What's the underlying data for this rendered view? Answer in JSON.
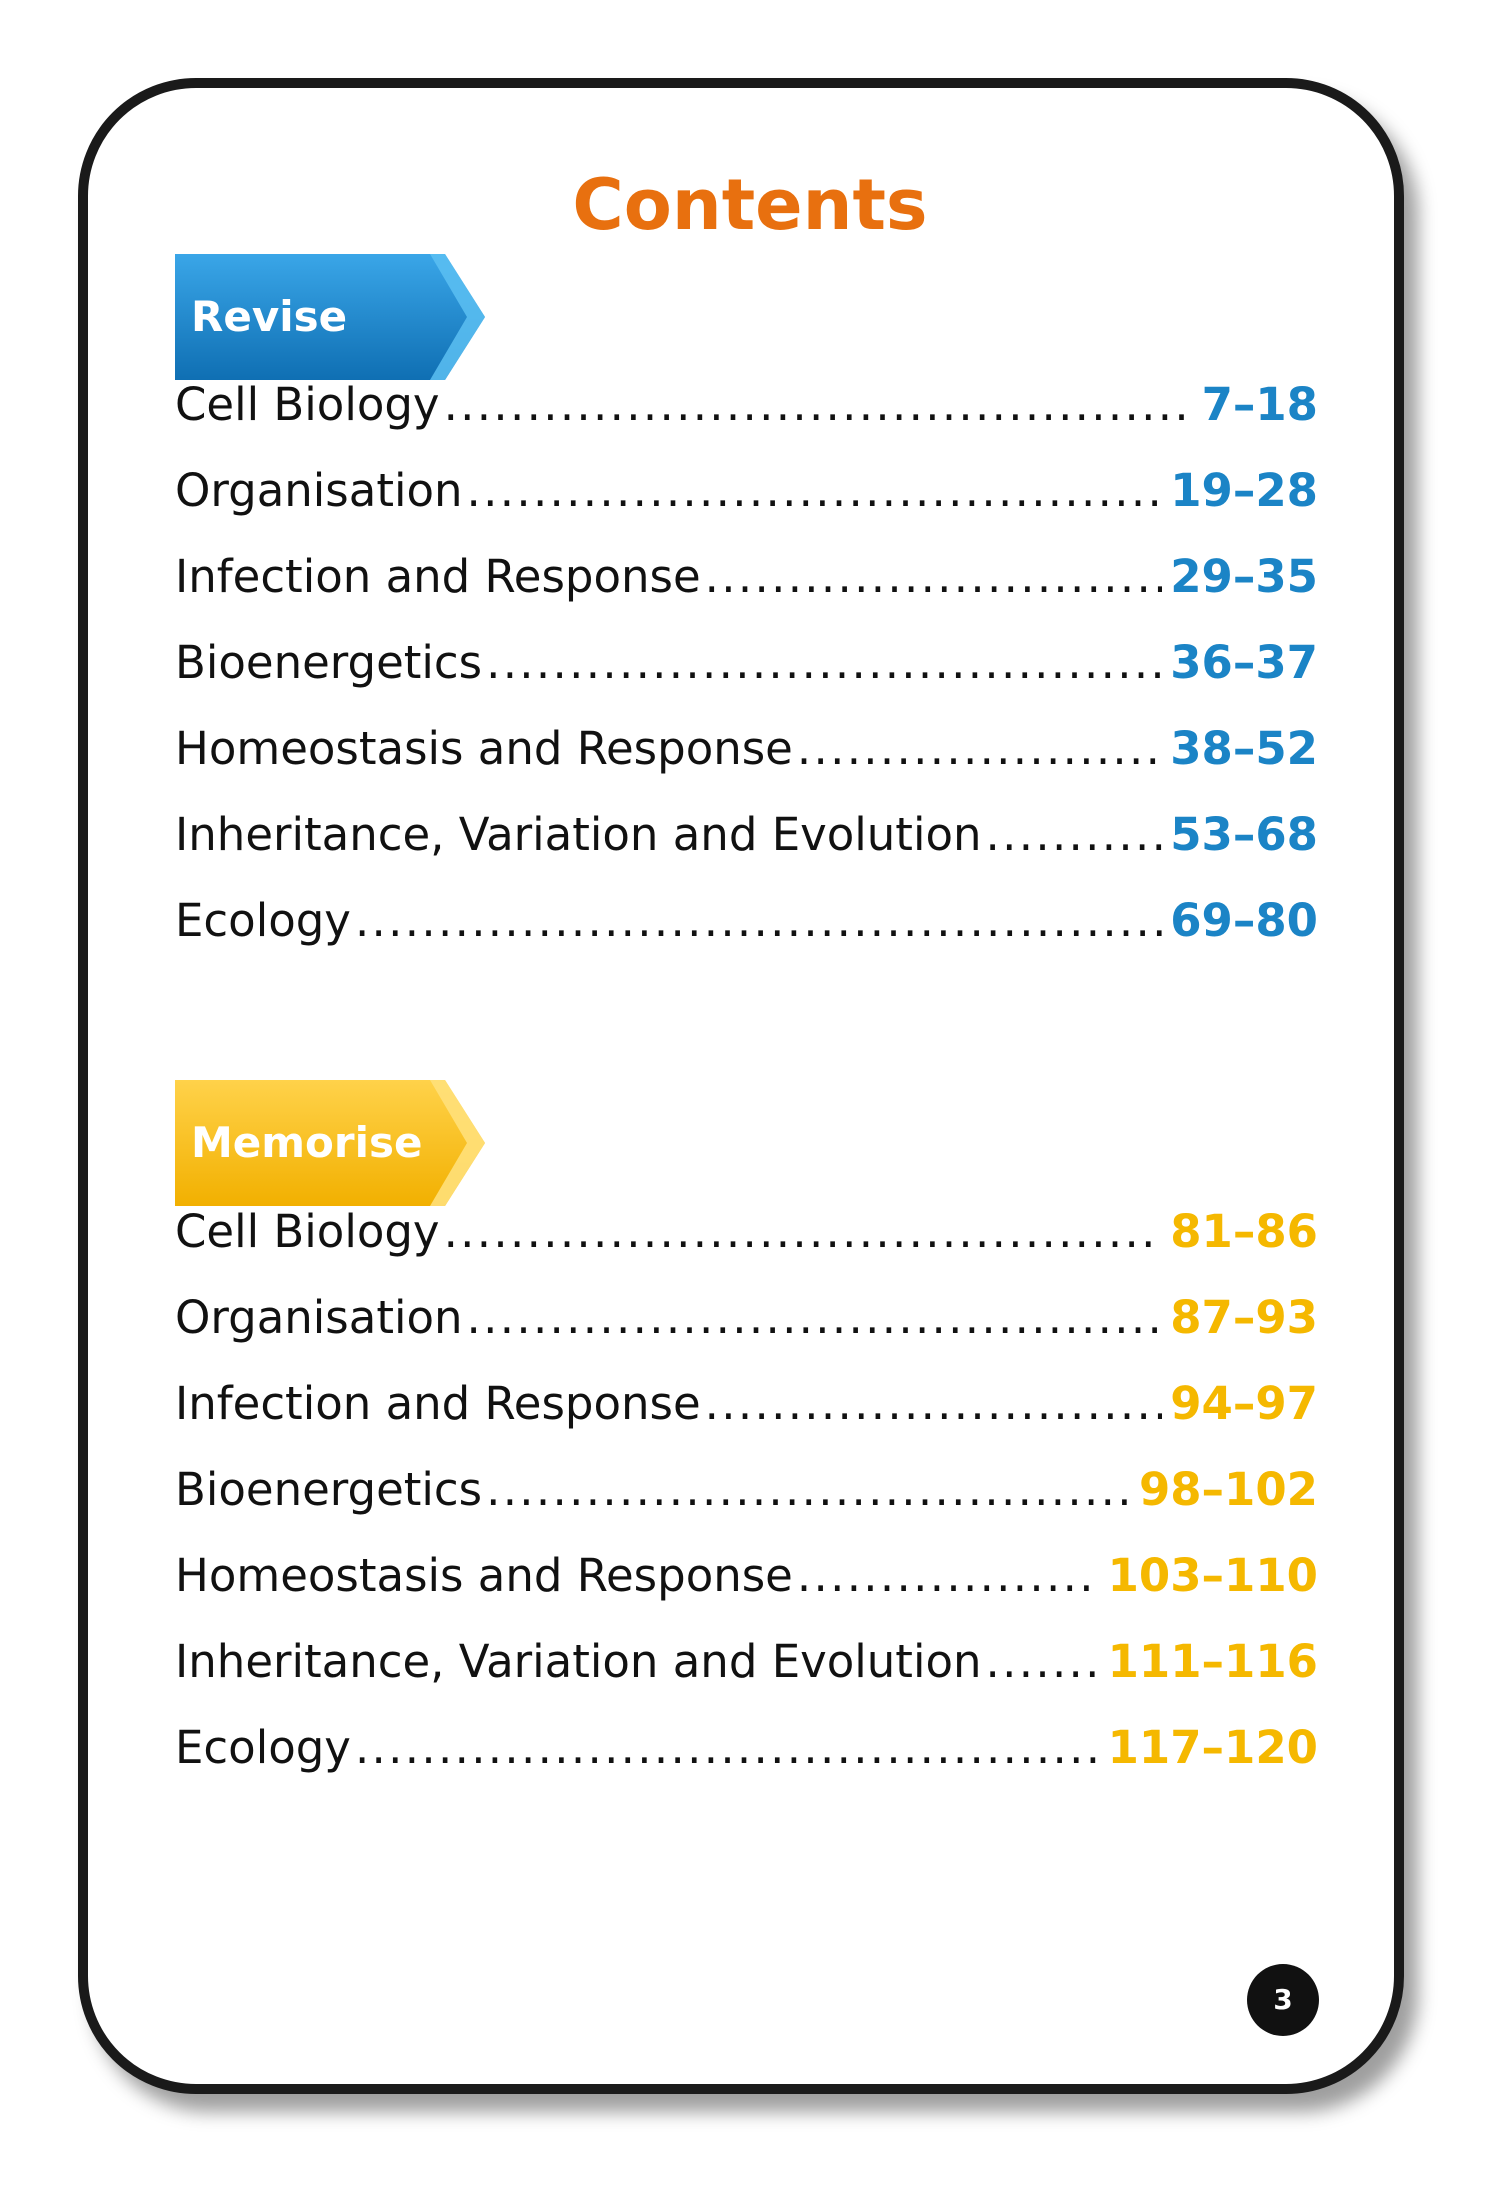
{
  "title": "Contents",
  "colors": {
    "title": "#e8700f",
    "revise": "#1b84c6",
    "memorise": "#f5b800"
  },
  "sections": [
    {
      "label": "Revise",
      "items": [
        {
          "name": "Cell Biology",
          "pages": "7–18"
        },
        {
          "name": "Organisation",
          "pages": "19–28"
        },
        {
          "name": "Infection and Response",
          "pages": "29–35"
        },
        {
          "name": "Bioenergetics",
          "pages": "36–37"
        },
        {
          "name": "Homeostasis and Response",
          "pages": "38–52"
        },
        {
          "name": "Inheritance, Variation and Evolution",
          "pages": "53–68"
        },
        {
          "name": "Ecology",
          "pages": "69–80"
        }
      ]
    },
    {
      "label": "Memorise",
      "items": [
        {
          "name": "Cell Biology",
          "pages": "81–86"
        },
        {
          "name": "Organisation",
          "pages": "87–93"
        },
        {
          "name": "Infection and Response",
          "pages": "94–97"
        },
        {
          "name": "Bioenergetics",
          "pages": "98–102"
        },
        {
          "name": "Homeostasis and Response",
          "pages": "103–110"
        },
        {
          "name": "Inheritance, Variation and Evolution",
          "pages": "111–116"
        },
        {
          "name": "Ecology",
          "pages": "117–120"
        }
      ]
    }
  ],
  "page_number": "3"
}
